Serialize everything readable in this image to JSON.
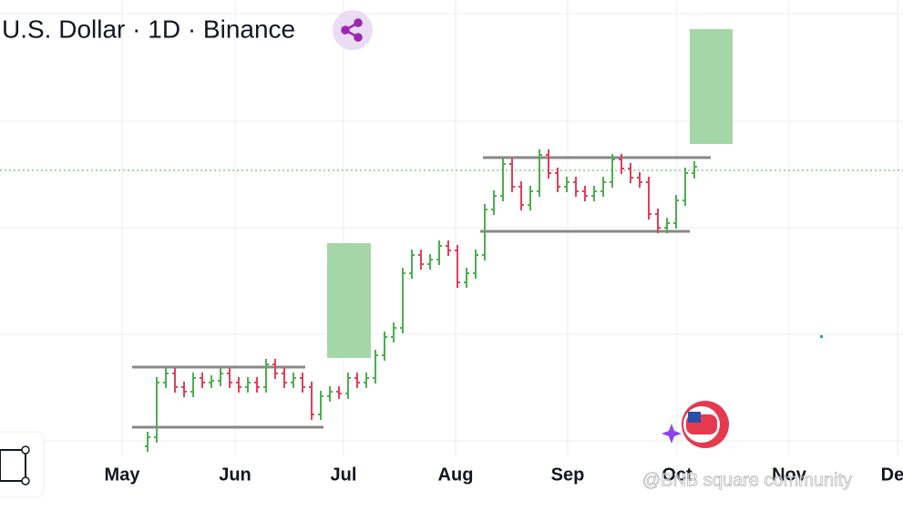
{
  "header": {
    "title": "U.S. Dollar · 1D · Binance"
  },
  "x_axis": {
    "labels": [
      "May",
      "Jun",
      "Jul",
      "Aug",
      "Sep",
      "Oct",
      "Nov",
      "Dec"
    ]
  },
  "watermark": "@BNB square community",
  "price": {
    "type": "bar-ohlc",
    "color_up": "#4caf50",
    "color_down": "#e0405a",
    "ylim": [
      0,
      556
    ],
    "values": [
      76,
      136,
      146,
      131,
      126,
      141,
      136,
      138,
      146,
      136,
      131,
      136,
      131,
      156,
      146,
      136,
      141,
      131,
      101,
      121,
      126,
      124,
      141,
      136,
      141,
      166,
      186,
      196,
      256,
      276,
      266,
      271,
      286,
      281,
      246,
      256,
      276,
      326,
      341,
      376,
      351,
      331,
      346,
      386,
      366,
      351,
      356,
      346,
      341,
      346,
      356,
      381,
      371,
      361,
      356,
      321,
      306,
      311,
      336,
      366,
      373
    ]
  }
}
